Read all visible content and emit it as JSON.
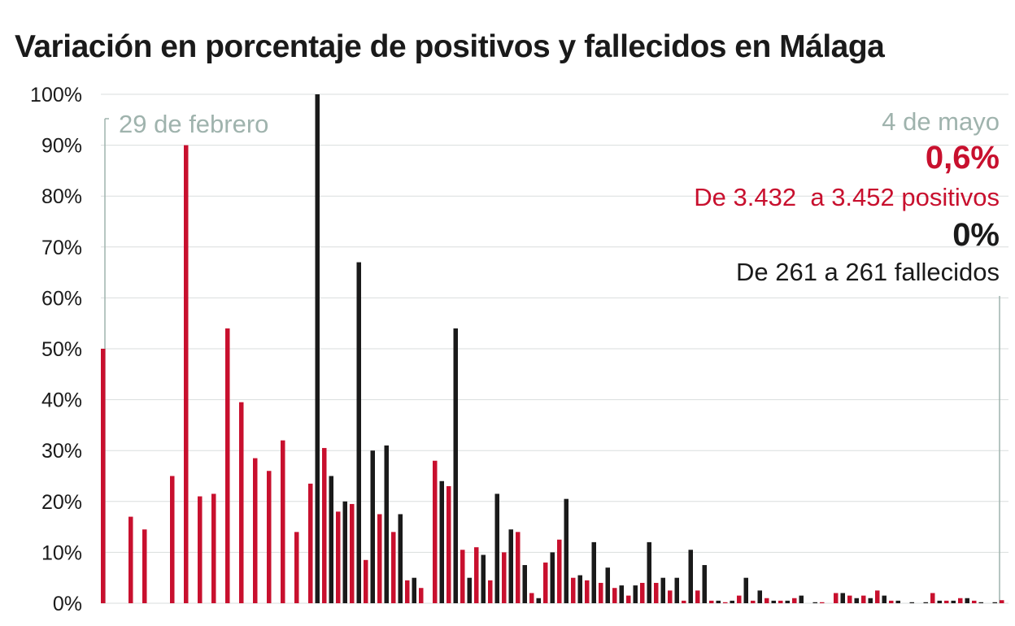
{
  "chart_data": {
    "type": "bar",
    "title": "Variación en porcentaje de positivos y fallecidos en Málaga",
    "xlabel": "",
    "ylabel": "",
    "ylim": [
      0,
      100
    ],
    "yticks": [
      "0%",
      "10%",
      "20%",
      "30%",
      "40%",
      "50%",
      "60%",
      "70%",
      "80%",
      "90%",
      "100%"
    ],
    "grid": true,
    "start_label": "29 de febrero",
    "end_label": "4 de mayo",
    "annotation": {
      "positives_pct": "0,6%",
      "positives_text": "De 3.432  a 3.452 positivos",
      "deaths_pct": "0%",
      "deaths_text": "De 261 a 261 fallecidos"
    },
    "colors": {
      "positivos": "#c8102e",
      "fallecidos": "#1a1a1a",
      "grid": "#d9dedd",
      "marker": "#9fb3ad"
    },
    "days": 66,
    "series": [
      {
        "key": "positivos",
        "values": [
          50,
          0,
          17,
          14.5,
          0,
          25,
          90,
          21,
          21.5,
          54,
          39.5,
          28.5,
          26,
          32,
          14,
          23.5,
          30.5,
          18,
          19.5,
          8.5,
          17.5,
          14,
          4.5,
          3,
          28,
          23,
          10.5,
          11,
          4.5,
          10,
          14,
          2,
          8,
          12.5,
          5,
          4.5,
          4,
          3,
          1.5,
          4,
          4,
          2.5,
          0.5,
          2.5,
          0.5,
          0.2,
          1.5,
          0.5,
          1,
          0.5,
          1,
          0,
          0.2,
          2,
          1.5,
          1.5,
          2.5,
          0.5,
          0,
          0,
          2,
          0.5,
          1,
          0.5,
          0,
          0.6
        ]
      },
      {
        "key": "fallecidos",
        "values": [
          0,
          0,
          0,
          0,
          0,
          0,
          0,
          0,
          0,
          0,
          0,
          0,
          0,
          0,
          0,
          100,
          25,
          20,
          67,
          30,
          31,
          17.5,
          5,
          0,
          24,
          54,
          5,
          9.5,
          21.5,
          14.5,
          7.5,
          1,
          10,
          20.5,
          5.5,
          12,
          7,
          3.5,
          3.5,
          12,
          5,
          5,
          10.5,
          7.5,
          0.5,
          0.5,
          5,
          2.5,
          0.5,
          0.5,
          1.5,
          0.2,
          0,
          2,
          1,
          1,
          1.5,
          0.5,
          0.2,
          0.2,
          0.5,
          0.5,
          1,
          0.2,
          0.2,
          0
        ]
      }
    ]
  }
}
